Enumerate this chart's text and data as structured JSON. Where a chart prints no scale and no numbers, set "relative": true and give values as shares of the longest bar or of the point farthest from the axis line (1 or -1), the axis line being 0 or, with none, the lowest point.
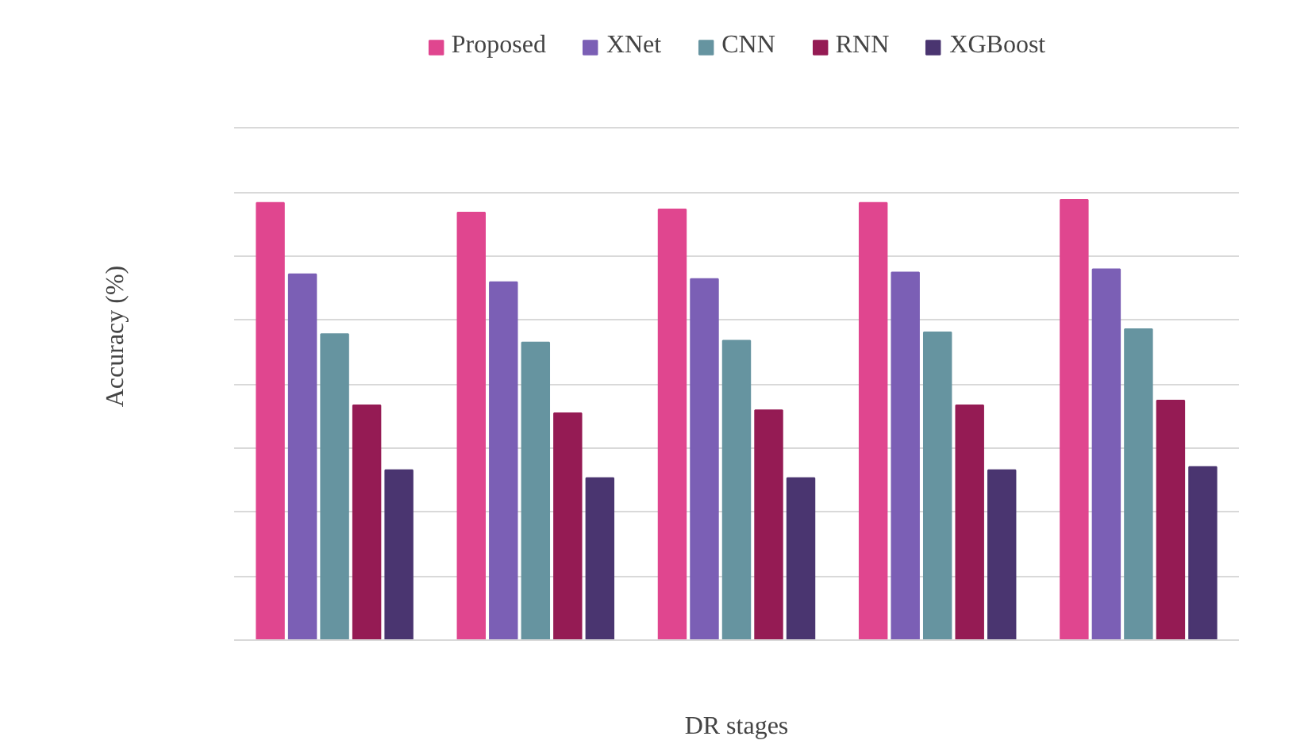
{
  "chart_data": {
    "type": "bar",
    "xlabel": "DR stages",
    "ylabel": "Accuracy (%)",
    "categories": [
      null,
      null,
      null,
      null,
      null
    ],
    "relative": true,
    "grid": "y",
    "legend": "top",
    "series": [
      {
        "name": "Proposed",
        "color": "#e0468f",
        "values": [
          0.993,
          0.971,
          0.978,
          0.993,
          1
        ]
      },
      {
        "name": "XNet",
        "color": "#7b5fb5",
        "values": [
          0.831,
          0.813,
          0.82,
          0.835,
          0.842
        ]
      },
      {
        "name": "CNN",
        "color": "#6694a0",
        "values": [
          0.695,
          0.676,
          0.68,
          0.699,
          0.706
        ]
      },
      {
        "name": "RNN",
        "color": "#951b54",
        "values": [
          0.533,
          0.515,
          0.522,
          0.533,
          0.544
        ]
      },
      {
        "name": "XGBoost",
        "color": "#4a3570",
        "values": [
          0.386,
          0.368,
          0.368,
          0.386,
          0.393
        ]
      }
    ]
  }
}
